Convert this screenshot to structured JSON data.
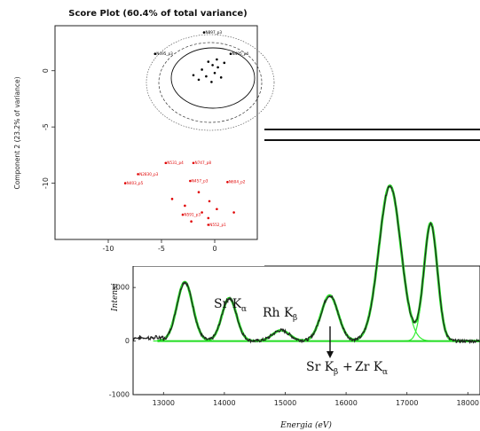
{
  "chart_data": [
    {
      "type": "scatter",
      "title": "Score Plot (60.4% of total variance)",
      "xlabel": "",
      "ylabel": "Component 2 (23.2% of variance)",
      "xlim": [
        -15,
        4
      ],
      "ylim": [
        -15,
        4
      ],
      "x_ticks": [
        "-10",
        "-5",
        "0"
      ],
      "y_ticks": [
        "0",
        "-5",
        "-10"
      ],
      "ellipses": "concentric ellipses around the upper cluster (solid inner, dashed/dotted outer)",
      "series": [
        {
          "color": "#000000",
          "points": [
            {
              "label": "N897_p3",
              "x": -1.0,
              "y": 3.4
            },
            {
              "label": "N495_p3",
              "x": -5.6,
              "y": 1.5
            },
            {
              "label": "N495_p4",
              "x": 1.5,
              "y": 1.5
            },
            {
              "label": "",
              "x": -0.6,
              "y": 0.8
            },
            {
              "label": "",
              "x": -0.2,
              "y": 0.5
            },
            {
              "label": "",
              "x": 0.3,
              "y": 0.3
            },
            {
              "label": "",
              "x": -1.2,
              "y": 0.1
            },
            {
              "label": "",
              "x": 0.0,
              "y": -0.2
            },
            {
              "label": "",
              "x": -0.8,
              "y": -0.5
            },
            {
              "label": "",
              "x": 0.6,
              "y": -0.6
            },
            {
              "label": "",
              "x": -1.5,
              "y": -0.8
            },
            {
              "label": "",
              "x": -0.3,
              "y": -1.0
            },
            {
              "label": "",
              "x": 0.9,
              "y": 0.7
            },
            {
              "label": "",
              "x": -2.0,
              "y": -0.4
            },
            {
              "label": "",
              "x": 0.2,
              "y": 1.0
            }
          ]
        },
        {
          "color": "#e00000",
          "points": [
            {
              "label": "N531_p4",
              "x": -4.6,
              "y": -8.2
            },
            {
              "label": "N747_p8",
              "x": -2.0,
              "y": -8.2
            },
            {
              "label": "N2830_p3",
              "x": -7.2,
              "y": -9.2
            },
            {
              "label": "N457_p3",
              "x": -2.3,
              "y": -9.8
            },
            {
              "label": "N604_p2",
              "x": 1.2,
              "y": -9.9
            },
            {
              "label": "N403_p5",
              "x": -8.4,
              "y": -10.0
            },
            {
              "label": "",
              "x": -1.5,
              "y": -10.8
            },
            {
              "label": "",
              "x": -4.0,
              "y": -11.4
            },
            {
              "label": "",
              "x": -0.5,
              "y": -11.6
            },
            {
              "label": "",
              "x": -2.8,
              "y": -12.0
            },
            {
              "label": "",
              "x": 0.2,
              "y": -12.3
            },
            {
              "label": "",
              "x": -1.2,
              "y": -12.6
            },
            {
              "label": "",
              "x": 1.8,
              "y": -12.6
            },
            {
              "label": "N591_p3",
              "x": -3.0,
              "y": -12.8
            },
            {
              "label": "",
              "x": -0.6,
              "y": -13.1
            },
            {
              "label": "N552_p1",
              "x": -0.6,
              "y": -13.7
            },
            {
              "label": "",
              "x": -2.2,
              "y": -13.4
            }
          ]
        }
      ]
    },
    {
      "type": "line",
      "title": "",
      "xlabel": "Energia (eV)",
      "ylabel": "Intensi",
      "xlim": [
        12500,
        18200
      ],
      "ylim": [
        -1000,
        1400
      ],
      "x_ticks": [
        13000,
        14000,
        15000,
        16000,
        17000,
        18000
      ],
      "y_ticks": [
        -1000,
        0,
        1000
      ],
      "annotations": [
        "Sr K",
        "Rh K",
        "Sr K",
        "Zr K",
        "α",
        "β",
        "+"
      ],
      "peaks": [
        {
          "center": 13350,
          "height": 1100,
          "sigma": 130
        },
        {
          "center": 14080,
          "height": 800,
          "sigma": 120
        },
        {
          "center": 14930,
          "height": 200,
          "sigma": 140
        },
        {
          "center": 15730,
          "height": 850,
          "sigma": 140
        },
        {
          "center": 16720,
          "height": 2900,
          "sigma": 180
        },
        {
          "center": 17390,
          "height": 2200,
          "sigma": 110
        }
      ],
      "series": [
        {
          "color": "#111111",
          "style": "measured spectrum"
        },
        {
          "color": "#22cc22",
          "style": "fit"
        }
      ]
    }
  ],
  "labels": {
    "score_title": "Score Plot (60.4% of total variance)",
    "score_ylabel": "Component 2 (23.2% of variance)",
    "xrf_ylabel": "Intensi",
    "xrf_xlabel": "Energia (eV)",
    "sr_k": "Sr K",
    "rh_k": "Rh K",
    "sr_k2": "Sr K",
    "zr_k": "Zr K",
    "alpha": "α",
    "beta": "β",
    "plus": "+"
  }
}
